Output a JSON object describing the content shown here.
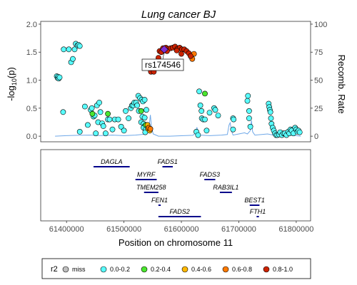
{
  "chart_data": {
    "type": "scatter",
    "title": "Lung cancer BJ",
    "ylabel_left_prefix": "-log",
    "ylabel_left_sub": "10",
    "ylabel_left_suffix": "(p)",
    "ylabel_right": "Recomb. Rate",
    "xlabel": "Position on chromosome 11",
    "ylim": [
      -0.1,
      2.05
    ],
    "ylim_right": [
      -5,
      102.5
    ],
    "xlim": [
      61355000,
      61825000
    ],
    "y_ticks": [
      "0.0",
      "0.5",
      "1.0",
      "1.5",
      "2.0"
    ],
    "y_ticks_right": [
      "0",
      "25",
      "50",
      "75",
      "100"
    ],
    "x_ticks": [
      "61400000",
      "61500000",
      "61600000",
      "61700000",
      "61800000"
    ],
    "x_tick_values": [
      61400000,
      61500000,
      61600000,
      61700000,
      61800000
    ],
    "lead_snp": {
      "label": "rs174546",
      "x": 61570000,
      "y": 1.55,
      "color": "#7F2FD3"
    },
    "r2_colors": {
      "miss": "#bebebe",
      "0.0-0.2": "#58FFFF",
      "0.2-0.4": "#4BE62F",
      "0.4-0.6": "#FFB800",
      "0.6-0.8": "#FF7A00",
      "0.8-1.0": "#CC2300"
    },
    "points": [
      [
        61383000,
        1.07,
        "0.0-0.2"
      ],
      [
        61384500,
        1.04,
        "0.0-0.2"
      ],
      [
        61385500,
        1.06,
        "0.0-0.2"
      ],
      [
        61386500,
        1.03,
        "0.0-0.2"
      ],
      [
        61388000,
        1.05,
        "0.0-0.2"
      ],
      [
        61395000,
        1.55,
        "0.0-0.2"
      ],
      [
        61404000,
        1.55,
        "0.0-0.2"
      ],
      [
        61408000,
        1.32,
        "0.0-0.2"
      ],
      [
        61411000,
        1.38,
        "0.0-0.2"
      ],
      [
        61414000,
        1.55,
        "0.0-0.2"
      ],
      [
        61416000,
        1.65,
        "0.0-0.2"
      ],
      [
        61419000,
        1.62,
        "0.0-0.2"
      ],
      [
        61421000,
        1.63,
        "0.0-0.2"
      ],
      [
        61423000,
        1.61,
        "0.0-0.2"
      ],
      [
        61394000,
        0.43,
        "0.0-0.2"
      ],
      [
        61423000,
        0.08,
        "0.0-0.2"
      ],
      [
        61432000,
        0.53,
        "0.0-0.2"
      ],
      [
        61437000,
        0.2,
        "0.0-0.2"
      ],
      [
        61442000,
        0.47,
        "0.0-0.2"
      ],
      [
        61444000,
        0.5,
        "0.0-0.2"
      ],
      [
        61447000,
        0.35,
        "0.0-0.2"
      ],
      [
        61449000,
        0.37,
        "0.0-0.2"
      ],
      [
        61451000,
        0.05,
        "0.0-0.2"
      ],
      [
        61453000,
        0.55,
        "0.0-0.2"
      ],
      [
        61455000,
        0.25,
        "0.0-0.2"
      ],
      [
        61457000,
        0.6,
        "0.0-0.2"
      ],
      [
        61459000,
        0.43,
        "0.0-0.2"
      ],
      [
        61462000,
        0.23,
        "0.0-0.2"
      ],
      [
        61464000,
        0.18,
        "0.0-0.2"
      ],
      [
        61468000,
        0.05,
        "0.0-0.2"
      ],
      [
        61472000,
        0.3,
        "0.0-0.2"
      ],
      [
        61475000,
        0.3,
        "0.0-0.2"
      ],
      [
        61480000,
        0.12,
        "0.0-0.2"
      ],
      [
        61484000,
        0.3,
        "0.0-0.2"
      ],
      [
        61490000,
        0.3,
        "0.0-0.2"
      ],
      [
        61495000,
        0.17,
        "0.0-0.2"
      ],
      [
        61500000,
        0.1,
        "0.0-0.2"
      ],
      [
        61503000,
        0.45,
        "0.0-0.2"
      ],
      [
        61508000,
        0.32,
        "0.0-0.2"
      ],
      [
        61512000,
        0.5,
        "0.0-0.2"
      ],
      [
        61514000,
        0.55,
        "0.0-0.2"
      ],
      [
        61516000,
        0.55,
        "0.0-0.2"
      ],
      [
        61518000,
        0.6,
        "0.0-0.2"
      ],
      [
        61521000,
        0.6,
        "0.0-0.2"
      ],
      [
        61523000,
        0.55,
        "0.0-0.2"
      ],
      [
        61525000,
        0.72,
        "0.0-0.2"
      ],
      [
        61528000,
        0.68,
        "0.0-0.2"
      ],
      [
        61531000,
        0.65,
        "0.0-0.2"
      ],
      [
        61533000,
        0.62,
        "0.0-0.2"
      ],
      [
        61536000,
        0.65,
        "0.0-0.2"
      ],
      [
        61539000,
        0.47,
        "0.0-0.2"
      ],
      [
        61526000,
        0.45,
        "0.0-0.2"
      ],
      [
        61532000,
        0.35,
        "0.0-0.2"
      ],
      [
        61536000,
        0.33,
        "0.0-0.2"
      ],
      [
        61530000,
        0.25,
        "0.0-0.2"
      ],
      [
        61534000,
        0.22,
        "0.0-0.2"
      ],
      [
        61536000,
        0.18,
        "0.0-0.2"
      ],
      [
        61534000,
        0.15,
        "0.0-0.2"
      ],
      [
        61538000,
        0.12,
        "0.0-0.2"
      ],
      [
        61537000,
        0.07,
        "0.0-0.2"
      ],
      [
        61626000,
        0.08,
        "0.0-0.2"
      ],
      [
        61629000,
        0.02,
        "0.0-0.2"
      ],
      [
        61631000,
        0.8,
        "0.0-0.2"
      ],
      [
        61633000,
        0.55,
        "0.0-0.2"
      ],
      [
        61635000,
        0.45,
        "0.0-0.2"
      ],
      [
        61635500,
        0.32,
        "0.0-0.2"
      ],
      [
        61638000,
        0.3,
        "0.0-0.2"
      ],
      [
        61641000,
        0.3,
        "0.0-0.2"
      ],
      [
        61644000,
        0.1,
        "0.0-0.2"
      ],
      [
        61649000,
        0.42,
        "0.0-0.2"
      ],
      [
        61657000,
        0.5,
        "0.0-0.2"
      ],
      [
        61659000,
        0.47,
        "0.0-0.2"
      ],
      [
        61664000,
        0.37,
        "0.0-0.2"
      ],
      [
        61690000,
        0.12,
        "0.0-0.2"
      ],
      [
        61690000,
        0.32,
        "0.0-0.2"
      ],
      [
        61691000,
        0.3,
        "0.0-0.2"
      ],
      [
        61715000,
        0.63,
        "0.0-0.2"
      ],
      [
        61716000,
        0.72,
        "0.0-0.2"
      ],
      [
        61718000,
        0.32,
        "0.0-0.2"
      ],
      [
        61720000,
        0.17,
        "0.0-0.2"
      ],
      [
        61718000,
        0.45,
        "0.0-0.2"
      ],
      [
        61752000,
        0.58,
        "0.0-0.2"
      ],
      [
        61753000,
        0.52,
        "0.0-0.2"
      ],
      [
        61754000,
        0.47,
        "0.0-0.2"
      ],
      [
        61755000,
        0.43,
        "0.0-0.2"
      ],
      [
        61756000,
        0.32,
        "0.0-0.2"
      ],
      [
        61757000,
        0.22,
        "0.0-0.2"
      ],
      [
        61759000,
        0.15,
        "0.0-0.2"
      ],
      [
        61761000,
        0.1,
        "0.0-0.2"
      ],
      [
        61763000,
        0.05,
        "0.0-0.2"
      ],
      [
        61765000,
        0.02,
        "0.0-0.2"
      ],
      [
        61767000,
        0.02,
        "0.0-0.2"
      ],
      [
        61770000,
        0.03,
        "0.0-0.2"
      ],
      [
        61772000,
        0.07,
        "0.0-0.2"
      ],
      [
        61775000,
        0.02,
        "0.0-0.2"
      ],
      [
        61778000,
        0.05,
        "0.0-0.2"
      ],
      [
        61780000,
        0.05,
        "0.0-0.2"
      ],
      [
        61783000,
        0.02,
        "0.0-0.2"
      ],
      [
        61786000,
        0.08,
        "0.0-0.2"
      ],
      [
        61788000,
        0.05,
        "0.0-0.2"
      ],
      [
        61790000,
        0.12,
        "0.0-0.2"
      ],
      [
        61792000,
        0.1,
        "0.0-0.2"
      ],
      [
        61795000,
        0.05,
        "0.0-0.2"
      ],
      [
        61798000,
        0.15,
        "0.0-0.2"
      ],
      [
        61800000,
        0.12,
        "0.0-0.2"
      ],
      [
        61802000,
        0.08,
        "0.0-0.2"
      ],
      [
        61804000,
        0.1,
        "0.0-0.2"
      ],
      [
        61806000,
        0.07,
        "0.0-0.2"
      ],
      [
        61445000,
        0.4,
        "0.2-0.4"
      ],
      [
        61472000,
        0.4,
        "0.2-0.4"
      ],
      [
        61530000,
        0.45,
        "0.2-0.4"
      ],
      [
        61538000,
        0.2,
        "0.2-0.4"
      ],
      [
        61641000,
        0.76,
        "0.2-0.4"
      ],
      [
        61542000,
        0.13,
        "0.4-0.6"
      ],
      [
        61545000,
        0.1,
        "0.4-0.6"
      ],
      [
        61541000,
        0.2,
        "0.4-0.6"
      ],
      [
        61543000,
        0.15,
        "0.6-0.8"
      ],
      [
        61546000,
        0.13,
        "0.6-0.8"
      ],
      [
        61619000,
        1.38,
        "0.6-0.8"
      ],
      [
        61622000,
        1.47,
        "0.6-0.8"
      ],
      [
        61547000,
        1.15,
        "0.8-1.0"
      ],
      [
        61552000,
        1.15,
        "0.8-1.0"
      ],
      [
        61553000,
        1.25,
        "0.8-1.0"
      ],
      [
        61556000,
        1.32,
        "0.8-1.0"
      ],
      [
        61560000,
        1.4,
        "0.8-1.0"
      ],
      [
        61562000,
        1.52,
        "0.8-1.0"
      ],
      [
        61565000,
        1.5,
        "0.8-1.0"
      ],
      [
        61568000,
        1.57,
        "0.8-1.0"
      ],
      [
        61573000,
        1.58,
        "0.8-1.0"
      ],
      [
        61577000,
        1.56,
        "0.8-1.0"
      ],
      [
        61581000,
        1.57,
        "0.8-1.0"
      ],
      [
        61585000,
        1.58,
        "0.8-1.0"
      ],
      [
        61589000,
        1.6,
        "0.8-1.0"
      ],
      [
        61593000,
        1.56,
        "0.8-1.0"
      ],
      [
        61597000,
        1.58,
        "0.8-1.0"
      ],
      [
        61601000,
        1.55,
        "0.8-1.0"
      ],
      [
        61605000,
        1.55,
        "0.8-1.0"
      ],
      [
        61609000,
        1.52,
        "0.8-1.0"
      ],
      [
        61613000,
        1.48,
        "0.8-1.0"
      ],
      [
        61616000,
        1.43,
        "0.8-1.0"
      ],
      [
        61575000,
        1.52,
        "0.8-1.0"
      ],
      [
        61592000,
        1.53,
        "0.8-1.0"
      ],
      [
        61600000,
        1.47,
        "0.8-1.0"
      ]
    ],
    "recomb": [
      [
        61380000,
        0
      ],
      [
        61400000,
        0.5
      ],
      [
        61420000,
        0.8
      ],
      [
        61440000,
        1
      ],
      [
        61460000,
        0.6
      ],
      [
        61480000,
        1
      ],
      [
        61500000,
        0.5
      ],
      [
        61520000,
        1
      ],
      [
        61540000,
        2
      ],
      [
        61543000,
        5
      ],
      [
        61546000,
        19
      ],
      [
        61548000,
        8
      ],
      [
        61551000,
        2
      ],
      [
        61560000,
        0
      ],
      [
        61580000,
        0
      ],
      [
        61600000,
        0.4
      ],
      [
        61620000,
        0.8
      ],
      [
        61625000,
        3
      ],
      [
        61627000,
        8
      ],
      [
        61629000,
        3
      ],
      [
        61632000,
        1
      ],
      [
        61650000,
        0.5
      ],
      [
        61670000,
        1
      ],
      [
        61680000,
        1.5
      ],
      [
        61683000,
        10
      ],
      [
        61685000,
        12
      ],
      [
        61687000,
        5
      ],
      [
        61690000,
        1
      ],
      [
        61700000,
        2
      ],
      [
        61710000,
        3
      ],
      [
        61715000,
        2
      ],
      [
        61720000,
        5
      ],
      [
        61722000,
        14
      ],
      [
        61724000,
        4
      ],
      [
        61728000,
        1
      ],
      [
        61740000,
        1.5
      ],
      [
        61750000,
        2
      ],
      [
        61760000,
        1
      ],
      [
        61770000,
        1
      ],
      [
        61780000,
        0.5
      ],
      [
        61790000,
        1
      ],
      [
        61800000,
        0.5
      ],
      [
        61808000,
        0
      ]
    ],
    "genes": [
      {
        "name": "DAGLA",
        "start": 61447000,
        "end": 61510000,
        "row": 0,
        "strand": "plus"
      },
      {
        "name": "FADS1",
        "start": 61567000,
        "end": 61585000,
        "row": 0,
        "strand": "minus"
      },
      {
        "name": "MYRF",
        "start": 61520000,
        "end": 61557000,
        "row": 1,
        "strand": "plus"
      },
      {
        "name": "FADS3",
        "start": 61640000,
        "end": 61659000,
        "row": 1,
        "strand": "minus"
      },
      {
        "name": "TMEM258",
        "start": 61535000,
        "end": 61560000,
        "row": 2,
        "strand": "minus"
      },
      {
        "name": "RAB3IL1",
        "start": 61667000,
        "end": 61688000,
        "row": 2,
        "strand": "minus"
      },
      {
        "name": "FEN1",
        "start": 61560000,
        "end": 61564000,
        "row": 3,
        "strand": "plus"
      },
      {
        "name": "BEST1",
        "start": 61719000,
        "end": 61736000,
        "row": 3,
        "strand": "plus"
      },
      {
        "name": "FADS2",
        "start": 61560000,
        "end": 61634000,
        "row": 4,
        "strand": "plus"
      },
      {
        "name": "FTH1",
        "start": 61731000,
        "end": 61735000,
        "row": 4,
        "strand": "minus"
      }
    ],
    "legend": {
      "title": "r2",
      "items": [
        {
          "label": "miss",
          "key": "miss"
        },
        {
          "label": "0.0-0.2",
          "key": "0.0-0.2"
        },
        {
          "label": "0.2-0.4",
          "key": "0.2-0.4"
        },
        {
          "label": "0.4-0.6",
          "key": "0.4-0.6"
        },
        {
          "label": "0.6-0.8",
          "key": "0.6-0.8"
        },
        {
          "label": "0.8-1.0",
          "key": "0.8-1.0"
        }
      ],
      "placement": "bottom"
    },
    "colors": {
      "recomb_line": "#6FA8E8",
      "gene_line": "#00008B",
      "lead_marker": "#7F2FD3",
      "axis": "#333333",
      "tick": "#4d4d4d"
    },
    "grid": false
  }
}
